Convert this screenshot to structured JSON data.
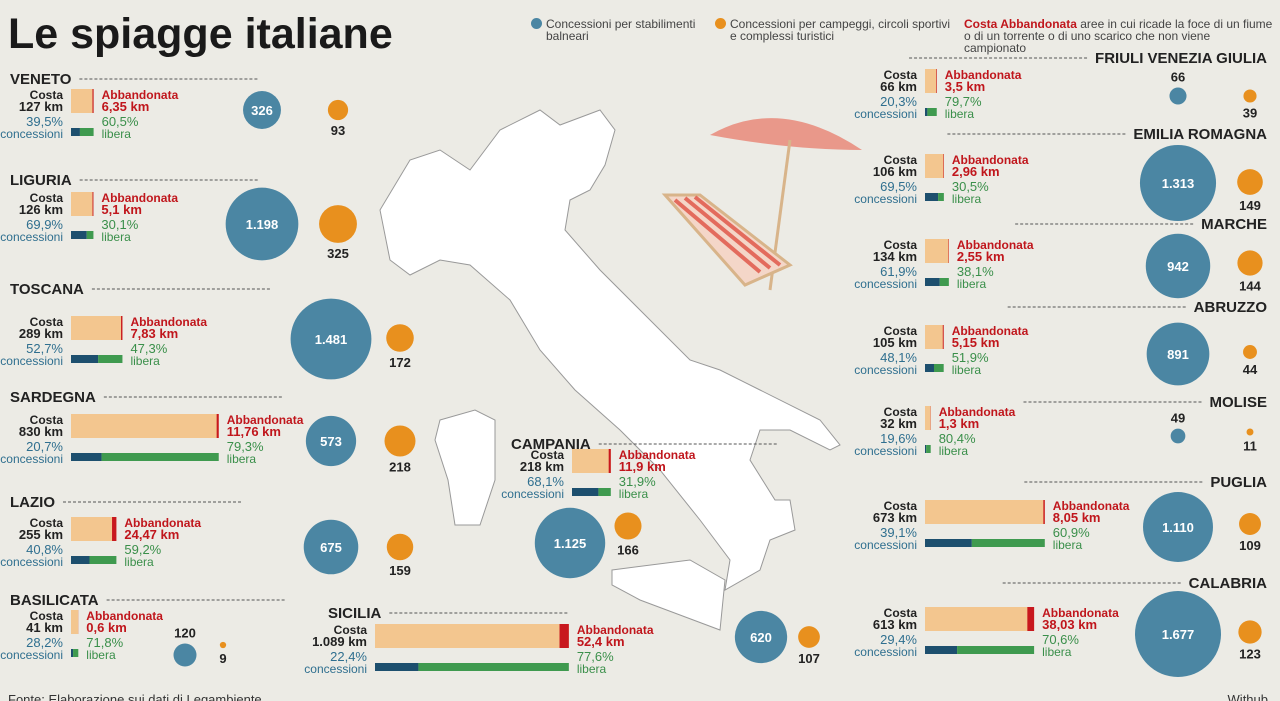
{
  "header": {
    "title": "Le spiagge italiane"
  },
  "legend": {
    "stabilimenti": "Concessioni per stabilimenti balneari",
    "campeggi": "Concessioni per campeggi, circoli sportivi e complessi turistici",
    "abbandonata_title": "Costa Abbandonata",
    "abbandonata_desc": "aree in cui ricade la foce di un fiume o di un torrente o di uno scarico che non viene campionato"
  },
  "labels": {
    "costa": "Costa",
    "abbandonata": "Abbandonata",
    "concessioni": "concessioni",
    "libera": "libera"
  },
  "regions": [
    {
      "name": "VENETO",
      "coast_km": 127,
      "coast_label": "127 km",
      "abandoned_km": 6.35,
      "abandoned_label": "6,35 km",
      "concessions_pct": 39.5,
      "concessions_label": "39,5%",
      "free_pct": 60.5,
      "free_label": "60,5%",
      "stabilimenti": 326,
      "campeggi": 93
    },
    {
      "name": "LIGURIA",
      "coast_km": 126,
      "coast_label": "126 km",
      "abandoned_km": 5.1,
      "abandoned_label": "5,1 km",
      "concessions_pct": 69.9,
      "concessions_label": "69,9%",
      "free_pct": 30.1,
      "free_label": "30,1%",
      "stabilimenti": 1198,
      "stabilimenti_label": "1.198",
      "campeggi": 325
    },
    {
      "name": "TOSCANA",
      "coast_km": 289,
      "coast_label": "289 km",
      "abandoned_km": 7.83,
      "abandoned_label": "7,83 km",
      "concessions_pct": 52.7,
      "concessions_label": "52,7%",
      "free_pct": 47.3,
      "free_label": "47,3%",
      "stabilimenti": 1481,
      "stabilimenti_label": "1.481",
      "campeggi": 172
    },
    {
      "name": "SARDEGNA",
      "coast_km": 830,
      "coast_label": "830 km",
      "abandoned_km": 11.76,
      "abandoned_label": "11,76 km",
      "concessions_pct": 20.7,
      "concessions_label": "20,7%",
      "free_pct": 79.3,
      "free_label": "79,3%",
      "stabilimenti": 573,
      "campeggi": 218
    },
    {
      "name": "LAZIO",
      "coast_km": 255,
      "coast_label": "255 km",
      "abandoned_km": 24.47,
      "abandoned_label": "24,47 km",
      "concessions_pct": 40.8,
      "concessions_label": "40,8%",
      "free_pct": 59.2,
      "free_label": "59,2%",
      "stabilimenti": 675,
      "campeggi": 159
    },
    {
      "name": "BASILICATA",
      "coast_km": 41,
      "coast_label": "41 km",
      "abandoned_km": 0.6,
      "abandoned_label": "0,6 km",
      "concessions_pct": 28.2,
      "concessions_label": "28,2%",
      "free_pct": 71.8,
      "free_label": "71,8%",
      "stabilimenti": 120,
      "campeggi": 9
    },
    {
      "name": "SICILIA",
      "coast_km": 1089,
      "coast_label": "1.089 km",
      "abandoned_km": 52.4,
      "abandoned_label": "52,4 km",
      "concessions_pct": 22.4,
      "concessions_label": "22,4%",
      "free_pct": 77.6,
      "free_label": "77,6%",
      "stabilimenti": 620,
      "campeggi": 107
    },
    {
      "name": "CAMPANIA",
      "coast_km": 218,
      "coast_label": "218 km",
      "abandoned_km": 11.9,
      "abandoned_label": "11,9 km",
      "concessions_pct": 68.1,
      "concessions_label": "68,1%",
      "free_pct": 31.9,
      "free_label": "31,9%",
      "stabilimenti": 1125,
      "stabilimenti_label": "1.125",
      "campeggi": 166
    },
    {
      "name": "FRIULI VENEZIA GIULIA",
      "coast_km": 66,
      "coast_label": "66 km",
      "abandoned_km": 3.5,
      "abandoned_label": "3,5 km",
      "concessions_pct": 20.3,
      "concessions_label": "20,3%",
      "free_pct": 79.7,
      "free_label": "79,7%",
      "stabilimenti": 66,
      "campeggi": 39
    },
    {
      "name": "EMILIA ROMAGNA",
      "coast_km": 106,
      "coast_label": "106 km",
      "abandoned_km": 2.96,
      "abandoned_label": "2,96 km",
      "concessions_pct": 69.5,
      "concessions_label": "69,5%",
      "free_pct": 30.5,
      "free_label": "30,5%",
      "stabilimenti": 1313,
      "stabilimenti_label": "1.313",
      "campeggi": 149
    },
    {
      "name": "MARCHE",
      "coast_km": 134,
      "coast_label": "134 km",
      "abandoned_km": 2.55,
      "abandoned_label": "2,55 km",
      "concessions_pct": 61.9,
      "concessions_label": "61,9%",
      "free_pct": 38.1,
      "free_label": "38,1%",
      "stabilimenti": 942,
      "campeggi": 144
    },
    {
      "name": "ABRUZZO",
      "coast_km": 105,
      "coast_label": "105 km",
      "abandoned_km": 5.15,
      "abandoned_label": "5,15 km",
      "concessions_pct": 48.1,
      "concessions_label": "48,1%",
      "free_pct": 51.9,
      "free_label": "51,9%",
      "stabilimenti": 891,
      "campeggi": 44
    },
    {
      "name": "MOLISE",
      "coast_km": 32,
      "coast_label": "32 km",
      "abandoned_km": 1.3,
      "abandoned_label": "1,3 km",
      "concessions_pct": 19.6,
      "concessions_label": "19,6%",
      "free_pct": 80.4,
      "free_label": "80,4%",
      "stabilimenti": 49,
      "campeggi": 11
    },
    {
      "name": "PUGLIA",
      "coast_km": 673,
      "coast_label": "673 km",
      "abandoned_km": 8.05,
      "abandoned_label": "8,05 km",
      "concessions_pct": 39.1,
      "concessions_label": "39,1%",
      "free_pct": 60.9,
      "free_label": "60,9%",
      "stabilimenti": 1110,
      "stabilimenti_label": "1.110",
      "campeggi": 109
    },
    {
      "name": "CALABRIA",
      "coast_km": 613,
      "coast_label": "613 km",
      "abandoned_km": 38.03,
      "abandoned_label": "38,03 km",
      "concessions_pct": 29.4,
      "concessions_label": "29,4%",
      "free_pct": 70.6,
      "free_label": "70,6%",
      "stabilimenti": 1677,
      "stabilimenti_label": "1.677",
      "campeggi": 123
    }
  ],
  "footer": {
    "source": "Fonte: Elaborazione sui dati di Legambiente",
    "credit": "Withub"
  }
}
